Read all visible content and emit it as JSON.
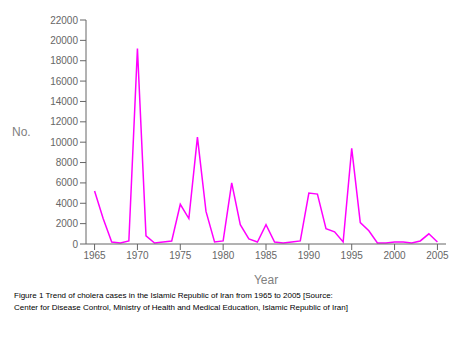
{
  "chart_data": {
    "type": "line",
    "x_label": "Year",
    "y_label": "No.",
    "x": [
      1965,
      1966,
      1967,
      1968,
      1969,
      1970,
      1971,
      1972,
      1973,
      1974,
      1975,
      1976,
      1977,
      1978,
      1979,
      1980,
      1981,
      1982,
      1983,
      1984,
      1985,
      1986,
      1987,
      1988,
      1989,
      1990,
      1991,
      1992,
      1993,
      1994,
      1995,
      1996,
      1997,
      1998,
      1999,
      2000,
      2001,
      2002,
      2003,
      2004,
      2005
    ],
    "values": [
      5200,
      2500,
      200,
      100,
      300,
      19200,
      800,
      100,
      200,
      300,
      3900,
      2500,
      10500,
      3200,
      200,
      300,
      6000,
      1900,
      500,
      200,
      1900,
      200,
      100,
      200,
      300,
      5000,
      4900,
      1500,
      1200,
      200,
      9400,
      2100,
      1300,
      100,
      100,
      200,
      200,
      100,
      300,
      1000,
      200
    ],
    "color": "#FF00FF",
    "xlim": [
      1964,
      2006
    ],
    "xticks": [
      1965,
      1970,
      1975,
      1980,
      1985,
      1990,
      1995,
      2000,
      2005
    ],
    "ylim": [
      0,
      22000
    ],
    "yticks": [
      0,
      2000,
      4000,
      6000,
      8000,
      10000,
      12000,
      14000,
      16000,
      18000,
      20000,
      22000
    ],
    "grid": false,
    "annotations": [
      "Figure 1 Trend of cholera cases in the Islamic Republic of Iran from 1965 to 2005 [Source:",
      "Center for Disease Control, Ministry of Health and Medical Education, Islamic Republic of Iran]"
    ]
  }
}
